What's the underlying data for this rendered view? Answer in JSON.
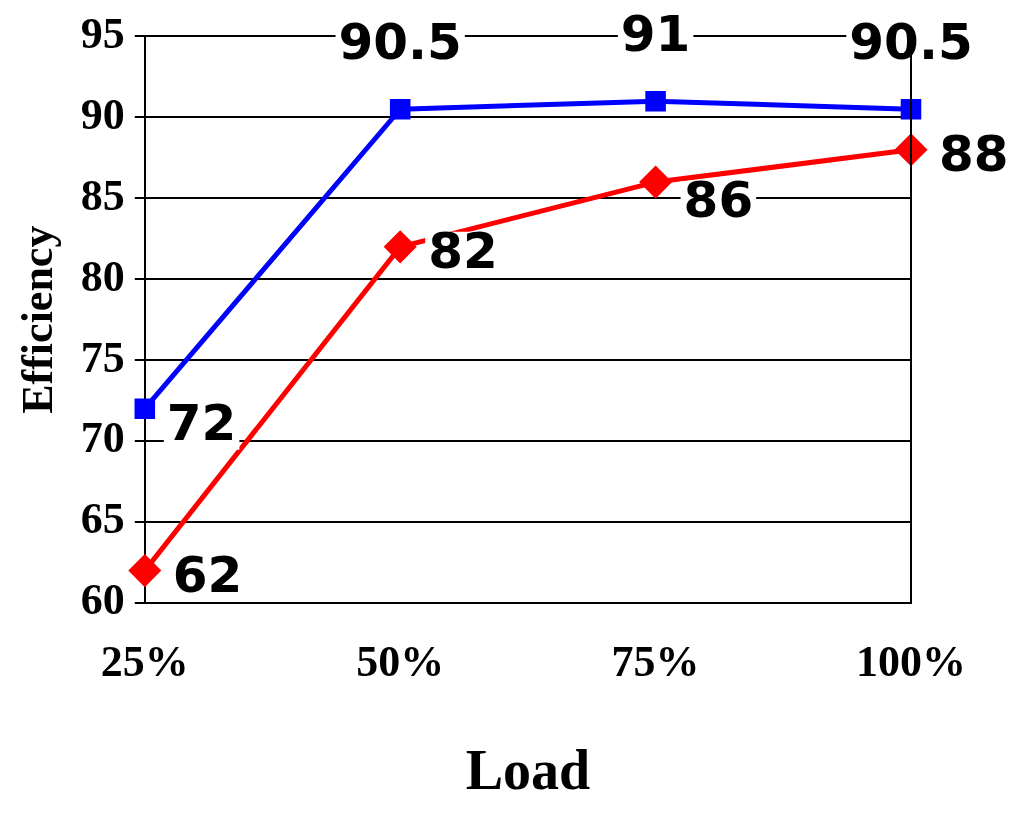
{
  "chart_data": {
    "type": "line",
    "xlabel": "Load",
    "ylabel": "Efficiency",
    "categories": [
      "25%",
      "50%",
      "75%",
      "100%"
    ],
    "series": [
      {
        "color": "#0000ff",
        "marker": "square",
        "values": [
          72,
          90.5,
          91,
          90.5
        ]
      },
      {
        "color": "#ff0000",
        "marker": "diamond",
        "values": [
          62,
          82,
          86,
          88
        ]
      }
    ],
    "ylim": [
      60,
      95
    ],
    "yticks": [
      60,
      65,
      70,
      75,
      80,
      85,
      90,
      95
    ],
    "grid": "y",
    "legend": false,
    "data_labels": true,
    "line_style": "solid"
  }
}
